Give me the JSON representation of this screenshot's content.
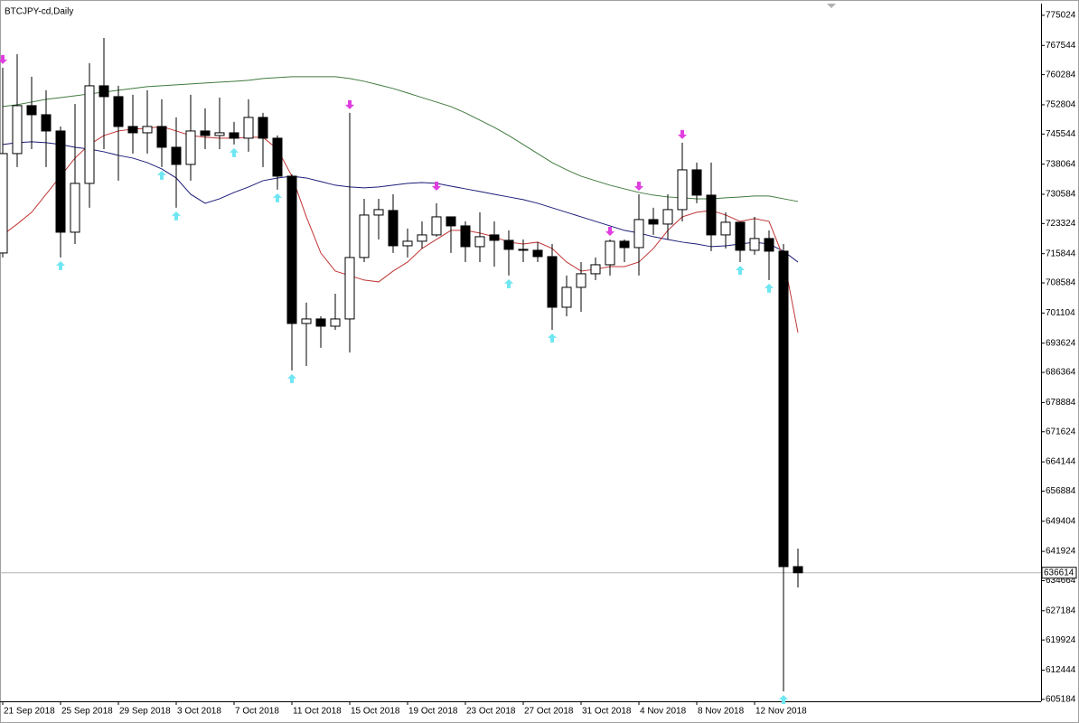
{
  "chart_data": {
    "type": "candlestick",
    "title": "BTCJPY-cd,Daily",
    "categories": [
      "21 Sep 2018",
      null,
      null,
      null,
      "25 Sep 2018",
      null,
      null,
      null,
      "29 Sep 2018",
      null,
      null,
      null,
      "3 Oct 2018",
      null,
      null,
      null,
      "7 Oct 2018",
      null,
      null,
      null,
      "11 Oct 2018",
      null,
      null,
      null,
      "15 Oct 2018",
      null,
      null,
      null,
      "19 Oct 2018",
      null,
      null,
      null,
      "23 Oct 2018",
      null,
      null,
      null,
      "27 Oct 2018",
      null,
      null,
      null,
      "31 Oct 2018",
      null,
      null,
      null,
      "4 Nov 2018",
      null,
      null,
      null,
      "8 Nov 2018",
      null,
      null,
      null,
      "12 Nov 2018",
      null,
      null,
      null
    ],
    "open": [
      716010,
      740690,
      752590,
      750340,
      746300,
      721170,
      733290,
      757520,
      754830,
      747420,
      745850,
      747420,
      742260,
      738000,
      746300,
      745180,
      745850,
      744510,
      749670,
      744510,
      735080,
      698510,
      699630,
      697830,
      699630,
      714890,
      725430,
      726560,
      717800,
      718930,
      720500,
      724980,
      722740,
      717580,
      720500,
      719150,
      716910,
      716680,
      715110,
      702540,
      707480,
      710850,
      713090,
      718930,
      717350,
      724310,
      723190,
      726780,
      736650,
      730370,
      720500,
      723640,
      716680,
      719600,
      716460,
      638140
    ],
    "high": [
      762010,
      765380,
      759770,
      756400,
      747420,
      753030,
      763130,
      769410,
      757520,
      755280,
      756400,
      754160,
      749670,
      755280,
      751910,
      754600,
      748550,
      754160,
      750790,
      745180,
      735530,
      703670,
      700300,
      705910,
      750790,
      729470,
      729470,
      730590,
      722070,
      723860,
      728350,
      724980,
      723860,
      726110,
      723860,
      721620,
      719370,
      718700,
      718250,
      710400,
      713760,
      714890,
      719370,
      719370,
      730590,
      727230,
      730590,
      743390,
      738450,
      738450,
      726110,
      723640,
      724980,
      721620,
      718250,
      642630
    ],
    "low": [
      714890,
      737330,
      741810,
      737330,
      714890,
      718250,
      727230,
      741810,
      733960,
      740690,
      740690,
      737330,
      727230,
      733960,
      741810,
      741810,
      742940,
      741140,
      737330,
      731720,
      686840,
      687960,
      692450,
      696930,
      691320,
      713760,
      719370,
      716010,
      714890,
      717130,
      720050,
      716010,
      713760,
      713760,
      712640,
      710400,
      713760,
      713760,
      696930,
      700300,
      701420,
      709280,
      710400,
      713760,
      710400,
      720500,
      719370,
      723860,
      728350,
      716460,
      717130,
      713760,
      715560,
      709280,
      607170,
      632980
    ],
    "close": [
      740690,
      752590,
      750340,
      746300,
      721170,
      733290,
      757520,
      754830,
      747420,
      745850,
      747420,
      742260,
      738000,
      746300,
      745180,
      745850,
      744510,
      749670,
      744510,
      735080,
      698510,
      699630,
      697830,
      699630,
      714890,
      725430,
      726780,
      717800,
      718930,
      720500,
      724980,
      722740,
      717580,
      720050,
      719150,
      716910,
      716680,
      715110,
      702540,
      707480,
      710850,
      713090,
      718930,
      717350,
      724310,
      723190,
      726780,
      736650,
      730370,
      720500,
      723640,
      716680,
      719600,
      716460,
      638140,
      636614
    ],
    "up_color": "#ffffff",
    "down_color": "#000000",
    "ylim": [
      604700,
      777700
    ],
    "yticks": [
      605184,
      612444,
      619924,
      627184,
      634664,
      641924,
      649404,
      656884,
      664144,
      671624,
      678884,
      686364,
      693624,
      701104,
      708584,
      715844,
      723324,
      730584,
      738064,
      745544,
      752804,
      760284,
      767544,
      775024
    ],
    "current_price": 636614,
    "indicators": [
      {
        "color": "#3f7a3f",
        "values": [
          752360,
          752810,
          753480,
          754160,
          754600,
          755050,
          755500,
          755950,
          756400,
          756850,
          757300,
          757520,
          757750,
          757970,
          758200,
          758420,
          758640,
          758870,
          759320,
          759540,
          759770,
          759770,
          759770,
          759770,
          759320,
          758640,
          757750,
          756850,
          755730,
          754600,
          753480,
          752360,
          750790,
          748990,
          747200,
          745180,
          742940,
          740690,
          738450,
          736650,
          735080,
          733960,
          732840,
          731940,
          731040,
          730370,
          729920,
          729700,
          729470,
          729470,
          729700,
          729920,
          730150,
          730150,
          729470,
          728800
        ]
      },
      {
        "color": "#1c1c78",
        "values": [
          742940,
          743390,
          743610,
          743390,
          742940,
          742260,
          741810,
          741140,
          740240,
          739570,
          738450,
          736880,
          734630,
          730590,
          728350,
          729470,
          731040,
          732390,
          733960,
          734630,
          735080,
          734630,
          733740,
          732840,
          732390,
          732170,
          732390,
          732840,
          733290,
          733510,
          733290,
          732610,
          731940,
          731270,
          730590,
          729920,
          729250,
          728350,
          727230,
          726110,
          724980,
          723860,
          722740,
          721620,
          720950,
          720050,
          719370,
          718700,
          718250,
          717580,
          717800,
          718250,
          718700,
          718250,
          716460,
          713760
        ]
      },
      {
        "color": "#c03434",
        "values": [
          720500,
          723190,
          726110,
          730590,
          735080,
          739570,
          742940,
          745180,
          746300,
          746750,
          746980,
          747420,
          746300,
          745180,
          744730,
          744510,
          744510,
          744730,
          744730,
          741810,
          735080,
          724980,
          716010,
          711520,
          710400,
          709280,
          708830,
          711520,
          713760,
          717130,
          719370,
          721620,
          721620,
          720950,
          720050,
          718700,
          718250,
          718700,
          717130,
          713760,
          711520,
          711970,
          712640,
          712640,
          713760,
          717130,
          721620,
          724980,
          726110,
          726560,
          725430,
          723860,
          724540,
          723860,
          714890,
          696260
        ]
      }
    ],
    "fractals_up": {
      "color": "#6fe6f2",
      "values": [
        null,
        null,
        null,
        null,
        714890,
        null,
        null,
        null,
        null,
        null,
        null,
        737330,
        727230,
        null,
        null,
        null,
        742940,
        null,
        null,
        731720,
        686840,
        null,
        null,
        null,
        null,
        null,
        null,
        null,
        null,
        null,
        null,
        null,
        null,
        null,
        null,
        710400,
        null,
        null,
        696930,
        null,
        null,
        null,
        null,
        null,
        null,
        null,
        null,
        null,
        null,
        null,
        null,
        713760,
        null,
        709280,
        607170,
        null
      ]
    },
    "fractals_down": {
      "color": "#e03ee0",
      "values": [
        762010,
        null,
        null,
        null,
        null,
        null,
        null,
        null,
        null,
        null,
        null,
        null,
        null,
        null,
        null,
        null,
        null,
        null,
        null,
        null,
        null,
        null,
        null,
        null,
        750790,
        null,
        null,
        null,
        null,
        null,
        730590,
        null,
        null,
        null,
        null,
        null,
        null,
        null,
        null,
        null,
        null,
        null,
        719370,
        null,
        730590,
        null,
        null,
        743390,
        null,
        null,
        null,
        null,
        null,
        null,
        null,
        null
      ]
    }
  }
}
